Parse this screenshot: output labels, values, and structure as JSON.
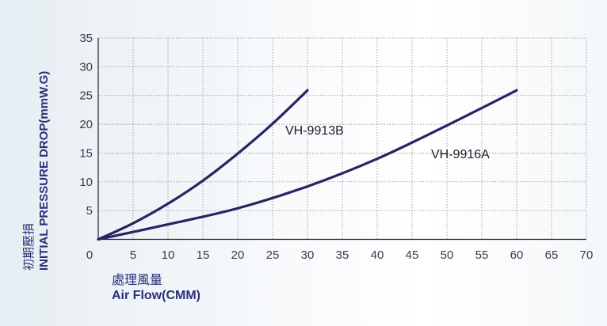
{
  "chart_data": {
    "type": "line",
    "title": "",
    "ylabel_zh": "初期壓損",
    "ylabel": "INITIAL PRESSURE DROP(mmW.G)",
    "xlabel_zh": "處理風量",
    "xlabel": "Air Flow(CMM)",
    "xlim": [
      0,
      70
    ],
    "ylim": [
      0,
      35
    ],
    "x_ticks": [
      0,
      5,
      10,
      15,
      20,
      25,
      30,
      35,
      40,
      45,
      50,
      55,
      60,
      65,
      70
    ],
    "y_ticks": [
      5,
      10,
      15,
      20,
      25,
      30,
      35
    ],
    "grid": true,
    "series": [
      {
        "name": "VH-9913B",
        "x": [
          0,
          5,
          10,
          15,
          20,
          25,
          30
        ],
        "y": [
          0,
          2.8,
          6.2,
          10.2,
          14.9,
          20.1,
          25.9
        ],
        "color": "#2a2363"
      },
      {
        "name": "VH-9916A",
        "x": [
          0,
          10,
          20,
          30,
          40,
          50,
          60
        ],
        "y": [
          0,
          2.6,
          5.4,
          9.2,
          14.0,
          19.8,
          25.9
        ],
        "color": "#2a2363"
      }
    ]
  }
}
